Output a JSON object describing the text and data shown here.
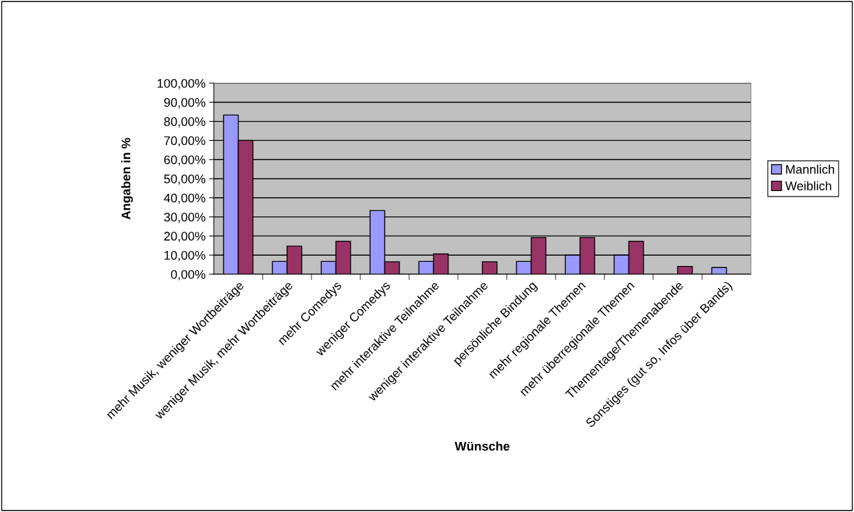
{
  "chart_data": {
    "type": "bar",
    "xlabel": "Wünsche",
    "ylabel": "Angaben in %",
    "categories": [
      "mehr Musik, weniger Wortbeiträge",
      "weniger Musik, mehr Wortbeiträge",
      "mehr Comedys",
      "weniger Comedys",
      "mehr interaktive Teilnahme",
      "weniger interaktive Teilnahme",
      "persönliche Bindung",
      "mehr regionale Themen",
      "mehr überregionale Themen",
      "Thementage/Themenabende",
      "Sonstiges (gut so, Infos über Bands)"
    ],
    "series": [
      {
        "name": "Mannlich",
        "color": "#9999ff",
        "values": [
          83.3,
          6.7,
          6.7,
          33.3,
          6.7,
          null,
          6.7,
          10.0,
          10.0,
          null,
          3.5
        ]
      },
      {
        "name": "Weiblich",
        "color": "#993366",
        "values": [
          70.0,
          14.7,
          17.2,
          6.5,
          10.6,
          6.5,
          19.2,
          19.2,
          17.2,
          4.1,
          null
        ]
      }
    ],
    "ylim": [
      0,
      100
    ],
    "yticks": [
      {
        "value": 0,
        "label": "0,00%"
      },
      {
        "value": 10,
        "label": "10,00%"
      },
      {
        "value": 20,
        "label": "20,00%"
      },
      {
        "value": 30,
        "label": "30,00%"
      },
      {
        "value": 40,
        "label": "40,00%"
      },
      {
        "value": 50,
        "label": "50,00%"
      },
      {
        "value": 60,
        "label": "60,00%"
      },
      {
        "value": 70,
        "label": "70,00%"
      },
      {
        "value": 80,
        "label": "80,00%"
      },
      {
        "value": 90,
        "label": "90,00%"
      },
      {
        "value": 100,
        "label": "100,00%"
      }
    ],
    "grid": "y",
    "legend": "right"
  }
}
